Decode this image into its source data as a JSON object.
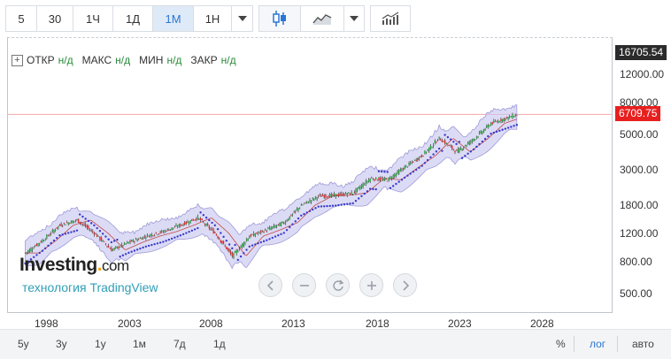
{
  "toolbar": {
    "intervals": [
      "5",
      "30",
      "1Ч",
      "1Д",
      "1М",
      "1Н"
    ],
    "active_interval": "1М",
    "icons": [
      "chevron-down-icon",
      "candlestick-icon",
      "line-chart-icon",
      "chevron-down-icon",
      "indicators-icon"
    ]
  },
  "legend": {
    "items": [
      {
        "label": "ОТКР",
        "value": "н/д"
      },
      {
        "label": "МАКС",
        "value": "н/д"
      },
      {
        "label": "МИН",
        "value": "н/д"
      },
      {
        "label": "ЗАКР",
        "value": "н/д"
      }
    ]
  },
  "price_axis": {
    "labels": [
      "12000.00",
      "8000.00",
      "5000.00",
      "3000.00",
      "1800.00",
      "1200.00",
      "800.00",
      "500.00"
    ],
    "top_tag": "16705.54",
    "current_tag": "6709.75",
    "current_color": "#e81f1f"
  },
  "time_axis": {
    "labels": [
      "1998",
      "2003",
      "2008",
      "2013",
      "2018",
      "2023",
      "2028"
    ]
  },
  "branding": {
    "logo_main": "Investing",
    "logo_suffix": "com",
    "powered_by": "технология TradingView"
  },
  "nav_icons": [
    "chevron-left-icon",
    "minus-icon",
    "reset-icon",
    "plus-icon",
    "chevron-right-icon"
  ],
  "bottombar": {
    "ranges": [
      "5y",
      "3y",
      "1y",
      "1м",
      "7д",
      "1д"
    ],
    "right_options": [
      "%",
      "лог",
      "авто"
    ],
    "active_option": "лог"
  },
  "chart_data": {
    "type": "candlestick",
    "scale": "log",
    "x_range": [
      "1996",
      "2031"
    ],
    "y_range": [
      350,
      18000
    ],
    "current_value": 6709.75,
    "overlays": [
      "parabolic-sar",
      "bollinger-bands"
    ],
    "series": [
      {
        "name": "",
        "x": [
          1997,
          1998,
          1999,
          2000,
          2001,
          2002,
          2003,
          2004,
          2005,
          2006,
          2007,
          2008,
          2009,
          2010,
          2011,
          2012,
          2013,
          2014,
          2015,
          2016,
          2017,
          2018,
          2019,
          2020,
          2021,
          2022,
          2023,
          2024,
          2025.5
        ],
        "values": [
          900,
          1080,
          1350,
          1450,
          1200,
          940,
          1050,
          1150,
          1230,
          1350,
          1500,
          1200,
          860,
          1150,
          1260,
          1400,
          1800,
          2050,
          2080,
          2150,
          2650,
          2600,
          3120,
          3700,
          4750,
          3900,
          4700,
          5900,
          6700
        ]
      }
    ]
  }
}
